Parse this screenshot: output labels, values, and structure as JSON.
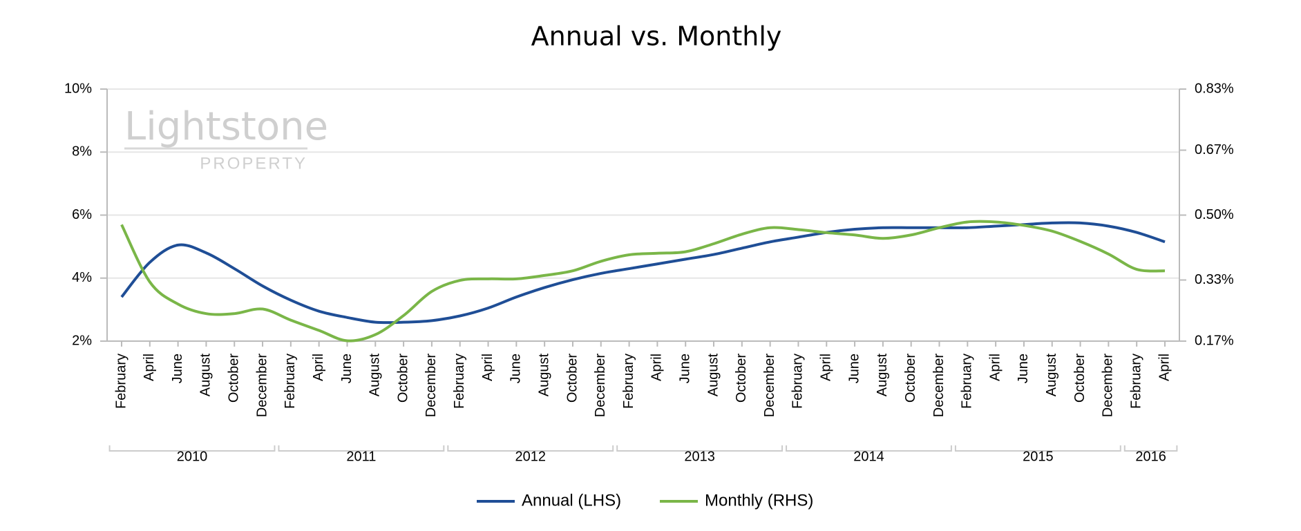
{
  "chart_data": {
    "type": "line",
    "title": "Annual vs. Monthly",
    "watermark": {
      "title": "Lightstone",
      "subtitle": "PROPERTY"
    },
    "categories": [
      "February",
      "April",
      "June",
      "August",
      "October",
      "December",
      "February",
      "April",
      "June",
      "August",
      "October",
      "December",
      "February",
      "April",
      "June",
      "August",
      "October",
      "December",
      "February",
      "April",
      "June",
      "August",
      "October",
      "December",
      "February",
      "April",
      "June",
      "August",
      "October",
      "December",
      "February",
      "April",
      "June",
      "August",
      "October",
      "December",
      "February",
      "April"
    ],
    "groups": [
      "2010",
      "2011",
      "2012",
      "2013",
      "2014",
      "2015",
      "2016"
    ],
    "series": [
      {
        "name": "Annual (LHS)",
        "color": "#1f4e96",
        "axis": "y",
        "values": [
          3.4,
          4.5,
          5.05,
          4.8,
          4.3,
          3.75,
          3.3,
          2.95,
          2.75,
          2.6,
          2.6,
          2.65,
          2.8,
          3.05,
          3.4,
          3.7,
          3.95,
          4.15,
          4.3,
          4.45,
          4.6,
          4.75,
          4.95,
          5.15,
          5.3,
          5.45,
          5.55,
          5.6,
          5.6,
          5.6,
          5.6,
          5.65,
          5.7,
          5.75,
          5.75,
          5.65,
          5.45,
          5.15
        ]
      },
      {
        "name": "Monthly (RHS)",
        "color": "#7ab648",
        "axis": "y2",
        "values": [
          0.475,
          0.325,
          0.267,
          0.242,
          0.242,
          0.254,
          0.225,
          0.198,
          0.171,
          0.187,
          0.237,
          0.3,
          0.329,
          0.333,
          0.333,
          0.342,
          0.354,
          0.379,
          0.396,
          0.4,
          0.404,
          0.425,
          0.45,
          0.467,
          0.462,
          0.454,
          0.448,
          0.439,
          0.448,
          0.467,
          0.482,
          0.482,
          0.473,
          0.458,
          0.431,
          0.398,
          0.358,
          0.354
        ]
      }
    ],
    "ylim": [
      2,
      10
    ],
    "yticks": [
      {
        "value": 2,
        "label": "2%"
      },
      {
        "value": 4,
        "label": "4%"
      },
      {
        "value": 6,
        "label": "6%"
      },
      {
        "value": 8,
        "label": "8%"
      },
      {
        "value": 10,
        "label": "10%"
      }
    ],
    "y2lim": [
      0.17,
      0.83
    ],
    "y2ticks": [
      {
        "value": 0.17,
        "label": "0.17%"
      },
      {
        "value": 0.33,
        "label": "0.33%"
      },
      {
        "value": 0.5,
        "label": "0.50%"
      },
      {
        "value": 0.67,
        "label": "0.67%"
      },
      {
        "value": 0.83,
        "label": "0.83%"
      }
    ],
    "grid": true,
    "legend": "bottom"
  }
}
